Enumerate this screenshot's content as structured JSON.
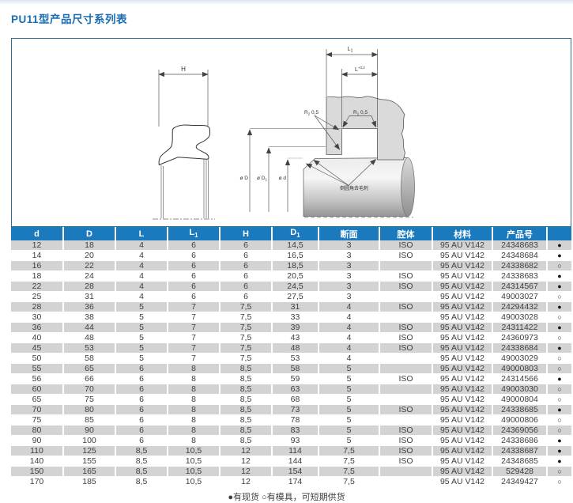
{
  "page": {
    "title": "PU11型产品尺寸系列表",
    "footnote": "●有现货 ○有模具，可短期供货"
  },
  "colors": {
    "title_blue": "#1a6cb2",
    "header_bg": "#1b79be",
    "row_alt_gray": "#d3d3d3",
    "box_border": "#2e6d8e",
    "table_text": "#3e3e3e"
  },
  "diagram": {
    "h_label": "H",
    "l1": {
      "base": "L",
      "sub": "1"
    },
    "l": {
      "base": "L",
      "tol": "+0,2"
    },
    "r2": {
      "base": "R",
      "sub": "2",
      "val": " 0,5"
    },
    "r1": {
      "base": "R",
      "sub": "1",
      "val": " 0,5"
    },
    "dia_D": "ø D",
    "dia_D1": {
      "base": "ø D",
      "sub": "1"
    },
    "dia_d": "ø d",
    "note": "倒圆角去毛刺"
  },
  "table": {
    "columns": [
      {
        "key": "d",
        "t": "d"
      },
      {
        "key": "D",
        "t": "D"
      },
      {
        "key": "L",
        "t": "L"
      },
      {
        "key": "L1",
        "t": "L",
        "s": "1"
      },
      {
        "key": "H",
        "t": "H"
      },
      {
        "key": "D1",
        "t": "D",
        "s": "1"
      },
      {
        "key": "duanmian",
        "t": "断面"
      },
      {
        "key": "qiangti",
        "t": "腔体"
      },
      {
        "key": "cailiao",
        "t": "材料"
      },
      {
        "key": "chanpinhao",
        "t": "产品号"
      },
      {
        "key": "stock",
        "t": ""
      }
    ],
    "rows": [
      [
        "12",
        "18",
        "4",
        "6",
        "6",
        "14,5",
        "3",
        "ISO",
        "95 AU V142",
        "24348683",
        "●"
      ],
      [
        "14",
        "20",
        "4",
        "6",
        "6",
        "16,5",
        "3",
        "ISO",
        "95 AU V142",
        "24348684",
        "●"
      ],
      [
        "16",
        "22",
        "4",
        "6",
        "6",
        "18,5",
        "3",
        "",
        "95 AU V142",
        "24338682",
        "○"
      ],
      [
        "18",
        "24",
        "4",
        "6",
        "6",
        "20,5",
        "3",
        "ISO",
        "95 AU V142",
        "24338683",
        "●"
      ],
      [
        "22",
        "28",
        "4",
        "6",
        "6",
        "24,5",
        "3",
        "ISO",
        "95 AU V142",
        "24314567",
        "●"
      ],
      [
        "25",
        "31",
        "4",
        "6",
        "6",
        "27,5",
        "3",
        "",
        "95 AU V142",
        "49003027",
        "○"
      ],
      [
        "28",
        "36",
        "5",
        "7",
        "7,5",
        "31",
        "4",
        "ISO",
        "95 AU V142",
        "24294432",
        "●"
      ],
      [
        "30",
        "38",
        "5",
        "7",
        "7,5",
        "33",
        "4",
        "",
        "95 AU V142",
        "49003028",
        "○"
      ],
      [
        "36",
        "44",
        "5",
        "7",
        "7,5",
        "39",
        "4",
        "ISO",
        "95 AU V142",
        "24311422",
        "●"
      ],
      [
        "40",
        "48",
        "5",
        "7",
        "7,5",
        "43",
        "4",
        "ISO",
        "95 AU V142",
        "24360973",
        "○"
      ],
      [
        "45",
        "53",
        "5",
        "7",
        "7,5",
        "48",
        "4",
        "ISO",
        "95 AU V142",
        "24338684",
        "●"
      ],
      [
        "50",
        "58",
        "5",
        "7",
        "7,5",
        "53",
        "4",
        "",
        "95 AU V142",
        "49003029",
        "○"
      ],
      [
        "55",
        "65",
        "6",
        "8",
        "8,5",
        "58",
        "5",
        "",
        "95 AU V142",
        "49000803",
        "○"
      ],
      [
        "56",
        "66",
        "6",
        "8",
        "8,5",
        "59",
        "5",
        "ISO",
        "95 AU V142",
        "24314566",
        "●"
      ],
      [
        "60",
        "70",
        "6",
        "8",
        "8,5",
        "63",
        "5",
        "",
        "95 AU V142",
        "49003030",
        "○"
      ],
      [
        "65",
        "75",
        "6",
        "8",
        "8,5",
        "68",
        "5",
        "",
        "95 AU V142",
        "49000804",
        "○"
      ],
      [
        "70",
        "80",
        "6",
        "8",
        "8,5",
        "73",
        "5",
        "ISO",
        "95 AU V142",
        "24338685",
        "●"
      ],
      [
        "75",
        "85",
        "6",
        "8",
        "8,5",
        "78",
        "5",
        "",
        "95 AU V142",
        "49000806",
        "○"
      ],
      [
        "80",
        "90",
        "6",
        "8",
        "8,5",
        "83",
        "5",
        "ISO",
        "95 AU V142",
        "24369056",
        "○"
      ],
      [
        "90",
        "100",
        "6",
        "8",
        "8,5",
        "93",
        "5",
        "ISO",
        "95 AU V142",
        "24338686",
        "●"
      ],
      [
        "110",
        "125",
        "8,5",
        "10,5",
        "12",
        "114",
        "7,5",
        "ISO",
        "95 AU V142",
        "24338687",
        "●"
      ],
      [
        "140",
        "155",
        "8,5",
        "10,5",
        "12",
        "144",
        "7,5",
        "ISO",
        "95 AU V142",
        "24348685",
        "●"
      ],
      [
        "150",
        "165",
        "8,5",
        "10,5",
        "12",
        "154",
        "7,5",
        "",
        "95 AU V142",
        "529428",
        "○"
      ],
      [
        "170",
        "185",
        "8,5",
        "10,5",
        "12",
        "174",
        "7,5",
        "",
        "95 AU V142",
        "24349427",
        "○"
      ]
    ]
  }
}
